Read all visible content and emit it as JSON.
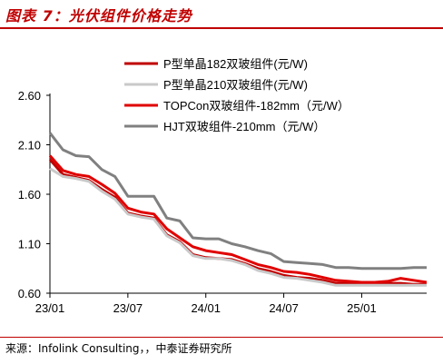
{
  "figure_title": "图表 7：光伏组件价格走势",
  "source_text": "来源：Infolink Consulting，，中泰证券研究所",
  "chart_data": {
    "type": "line",
    "x_ticks": [
      "23/01",
      "23/07",
      "24/01",
      "24/07",
      "25/01"
    ],
    "y_ticks": [
      "2.60",
      "2.10",
      "1.60",
      "1.10",
      "0.60"
    ],
    "ylim": [
      0.6,
      2.6
    ],
    "xlim": [
      "2023-01",
      "2025-06"
    ],
    "grid": false,
    "legend_position": "top-right",
    "series": [
      {
        "name": "P型单晶182双玻组件(元/W)",
        "color": "#c00000",
        "x": [
          "2023-01",
          "2023-02",
          "2023-03",
          "2023-04",
          "2023-05",
          "2023-06",
          "2023-07",
          "2023-08",
          "2023-09",
          "2023-10",
          "2023-11",
          "2023-12",
          "2024-01",
          "2024-02",
          "2024-03",
          "2024-04",
          "2024-05",
          "2024-06",
          "2024-07",
          "2024-08",
          "2024-09",
          "2024-10",
          "2024-11",
          "2024-12",
          "2025-01",
          "2025-02",
          "2025-03",
          "2025-04",
          "2025-05",
          "2025-06"
        ],
        "values": [
          1.95,
          1.8,
          1.77,
          1.74,
          1.65,
          1.57,
          1.41,
          1.38,
          1.36,
          1.19,
          1.12,
          0.99,
          0.96,
          0.95,
          0.94,
          0.9,
          0.85,
          0.82,
          0.78,
          0.76,
          0.75,
          0.73,
          0.7,
          0.7,
          0.7,
          0.7,
          0.7,
          0.7,
          0.69,
          0.69
        ]
      },
      {
        "name": "P型单晶210双玻组件(元/W)",
        "color": "#c9c9c9",
        "x": [
          "2023-01",
          "2023-02",
          "2023-03",
          "2023-04",
          "2023-05",
          "2023-06",
          "2023-07",
          "2023-08",
          "2023-09",
          "2023-10",
          "2023-11",
          "2023-12",
          "2024-01",
          "2024-02",
          "2024-03",
          "2024-04",
          "2024-05",
          "2024-06",
          "2024-07",
          "2024-08",
          "2024-09",
          "2024-10",
          "2024-11",
          "2024-12",
          "2025-01",
          "2025-02",
          "2025-03",
          "2025-04",
          "2025-05",
          "2025-06"
        ],
        "values": [
          1.86,
          1.78,
          1.76,
          1.73,
          1.63,
          1.55,
          1.4,
          1.37,
          1.35,
          1.18,
          1.11,
          0.98,
          0.95,
          0.95,
          0.93,
          0.89,
          0.83,
          0.8,
          0.76,
          0.75,
          0.73,
          0.71,
          0.68,
          0.68,
          0.68,
          0.68,
          0.68,
          0.68,
          0.68,
          0.68
        ]
      },
      {
        "name": "TOPCon双玻组件-182mm（元/W）",
        "color": "#e00000",
        "x": [
          "2023-01",
          "2023-02",
          "2023-03",
          "2023-04",
          "2023-05",
          "2023-06",
          "2023-07",
          "2023-08",
          "2023-09",
          "2023-10",
          "2023-11",
          "2023-12",
          "2024-01",
          "2024-02",
          "2024-03",
          "2024-04",
          "2024-05",
          "2024-06",
          "2024-07",
          "2024-08",
          "2024-09",
          "2024-10",
          "2024-11",
          "2024-12",
          "2025-01",
          "2025-02",
          "2025-03",
          "2025-04",
          "2025-05",
          "2025-06"
        ],
        "values": [
          1.99,
          1.84,
          1.8,
          1.78,
          1.7,
          1.61,
          1.46,
          1.42,
          1.4,
          1.25,
          1.16,
          1.07,
          1.03,
          1.01,
          0.99,
          0.94,
          0.89,
          0.86,
          0.82,
          0.81,
          0.79,
          0.76,
          0.73,
          0.72,
          0.71,
          0.71,
          0.72,
          0.75,
          0.73,
          0.71
        ]
      },
      {
        "name": "HJT双玻组件-210mm（元/W）",
        "color": "#808080",
        "x": [
          "2023-01",
          "2023-02",
          "2023-03",
          "2023-04",
          "2023-05",
          "2023-06",
          "2023-07",
          "2023-08",
          "2023-09",
          "2023-10",
          "2023-11",
          "2023-12",
          "2024-01",
          "2024-02",
          "2024-03",
          "2024-04",
          "2024-05",
          "2024-06",
          "2024-07",
          "2024-08",
          "2024-09",
          "2024-10",
          "2024-11",
          "2024-12",
          "2025-01",
          "2025-02",
          "2025-03",
          "2025-04",
          "2025-05",
          "2025-06"
        ],
        "values": [
          2.22,
          2.05,
          1.99,
          1.98,
          1.85,
          1.78,
          1.58,
          1.58,
          1.58,
          1.36,
          1.33,
          1.16,
          1.15,
          1.15,
          1.1,
          1.07,
          1.03,
          1.0,
          0.92,
          0.91,
          0.9,
          0.89,
          0.86,
          0.86,
          0.85,
          0.85,
          0.85,
          0.85,
          0.86,
          0.86
        ]
      }
    ]
  }
}
